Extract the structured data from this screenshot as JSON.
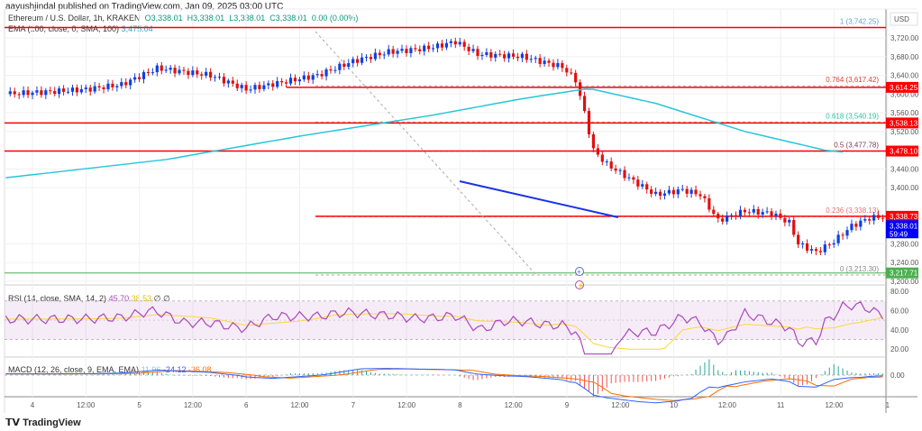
{
  "header": {
    "publisher": "aayushjindal published on TradingView.com, Jan 09, 2025 03:00 UTC"
  },
  "legend": {
    "symbol": "Ethereum / U.S. Dollar, 1h, KRAKEN",
    "open": "O3,338.01",
    "high": "H3,338.01",
    "low": "L3,338.01",
    "close": "C3,338.01",
    "change": "0.00 (0.00%)",
    "ema_label": "EMA (100, close, 0, SMA, 100)",
    "ema_value": "3,475.04"
  },
  "rsi": {
    "label": "RSI (14, close, SMA, 14, 2)",
    "v1": "45.70",
    "v2": "38.53",
    "v3": "∅ ∅",
    "axis": [
      "80.00",
      "60.00",
      "40.00",
      "20.00"
    ]
  },
  "macd": {
    "label": "MACD (12, 26, close, 9, EMA, EMA)",
    "v1": "11.96",
    "v2": "-24.12",
    "v3": "-36.08",
    "axis": "0.00"
  },
  "currency": "USD",
  "price_axis": [
    "3,720.00",
    "3,680.00",
    "3,640.00",
    "3,600.00",
    "3,560.00",
    "3,520.00",
    "3,440.00",
    "3,400.00",
    "3,280.00",
    "3,240.00",
    "3,200.00"
  ],
  "price_axis_values": [
    3720,
    3680,
    3640,
    3600,
    3560,
    3520,
    3440,
    3400,
    3280,
    3240,
    3200
  ],
  "time_axis": [
    "4",
    "12:00",
    "5",
    "12:00",
    "6",
    "12:00",
    "7",
    "12:00",
    "8",
    "12:00",
    "9",
    "12:00",
    "10",
    "12:00",
    "11",
    "12:00",
    "1"
  ],
  "fib": [
    {
      "label": "1 (3,742.25)",
      "price": 3742.25,
      "color": "#5aa9d6"
    },
    {
      "label": "0.764 (3,617.42)",
      "price": 3617.42,
      "color": "#e53935"
    },
    {
      "label": "0.618 (3,540.19)",
      "price": 3540.19,
      "color": "#26c6a0"
    },
    {
      "label": "0.5 (3,477.78)",
      "price": 3477.78,
      "color": "#7a3b52"
    },
    {
      "label": "0.236 (3,338.13)",
      "price": 3338.13,
      "color": "#e57373"
    },
    {
      "label": "0 (3,213.30)",
      "price": 3213.3,
      "color": "#888888"
    }
  ],
  "price_tags": [
    {
      "text": "3,614.25",
      "price": 3614.25,
      "color": "#f00"
    },
    {
      "text": "3,538.13",
      "price": 3538.13,
      "color": "#f00"
    },
    {
      "text": "3,478.10",
      "price": 3478.1,
      "color": "#f00"
    },
    {
      "text": "3,338.73",
      "price": 3338.73,
      "color": "#f00"
    },
    {
      "text": "3,217.71",
      "price": 3217.71,
      "color": "#4caf50"
    }
  ],
  "current_price": {
    "text": "3,338.01",
    "countdown": "59:49",
    "color": "#0000ff"
  },
  "price_keypoints": [
    [
      -6,
      3600
    ],
    [
      4,
      3605
    ],
    [
      12,
      3610
    ],
    [
      20,
      3620
    ],
    [
      28,
      3655
    ],
    [
      40,
      3640
    ],
    [
      48,
      3610
    ],
    [
      56,
      3625
    ],
    [
      64,
      3640
    ],
    [
      72,
      3670
    ],
    [
      80,
      3690
    ],
    [
      86,
      3695
    ],
    [
      90,
      3700
    ],
    [
      95,
      3712
    ],
    [
      100,
      3685
    ],
    [
      110,
      3680
    ],
    [
      119,
      3658
    ],
    [
      122,
      3630
    ],
    [
      124,
      3560
    ],
    [
      126,
      3480
    ],
    [
      129,
      3450
    ],
    [
      134,
      3420
    ],
    [
      140,
      3385
    ],
    [
      146,
      3395
    ],
    [
      150,
      3385
    ],
    [
      154,
      3330
    ],
    [
      160,
      3350
    ],
    [
      166,
      3345
    ],
    [
      170,
      3325
    ],
    [
      172,
      3280
    ],
    [
      176,
      3262
    ],
    [
      180,
      3285
    ],
    [
      184,
      3318
    ],
    [
      188,
      3335
    ],
    [
      191,
      3338
    ]
  ],
  "ema_keypoints": [
    [
      -6,
      3421
    ],
    [
      30,
      3460
    ],
    [
      60,
      3510
    ],
    [
      90,
      3555
    ],
    [
      110,
      3590
    ],
    [
      125,
      3612
    ],
    [
      140,
      3580
    ],
    [
      160,
      3520
    ],
    [
      178,
      3480
    ],
    [
      183,
      3475
    ]
  ],
  "colors": {
    "up": "#1040e0",
    "down": "#e01010",
    "ema": "#26c6da",
    "rsi": "#ab47bc",
    "rsi_ma": "#fdd835",
    "macd": "#2962ff",
    "signal": "#ff6d00",
    "trend": "#1a33e6"
  },
  "brand": "TradingView"
}
